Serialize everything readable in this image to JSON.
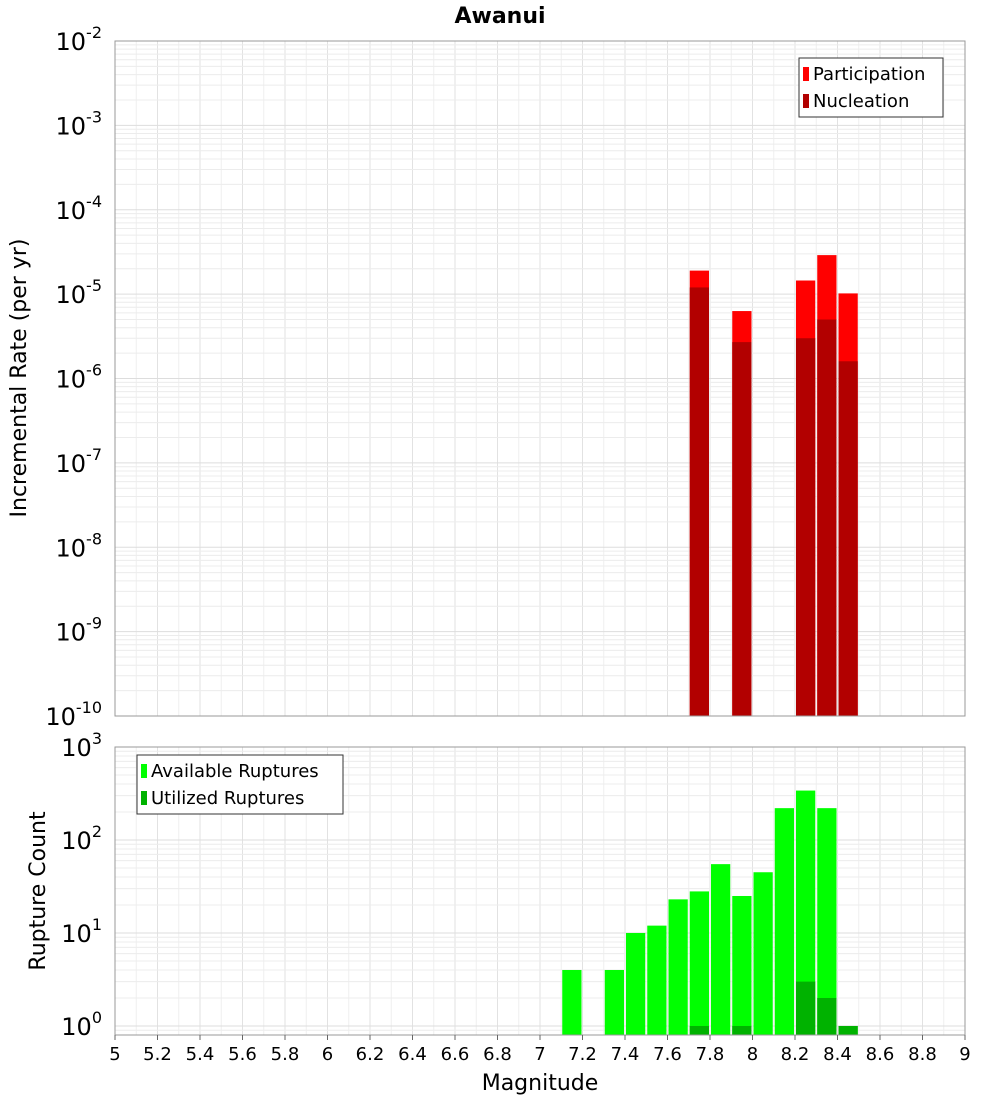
{
  "chart_data": [
    {
      "type": "bar",
      "title": "Awanui",
      "xlabel": "",
      "ylabel": "Incremental Rate (per yr)",
      "yscale": "log",
      "ylim": [
        1e-10,
        0.01
      ],
      "xlim": [
        5,
        9
      ],
      "bar_width": 0.1,
      "y_ticks": [
        {
          "mantissa": "10",
          "exp": "-10"
        },
        {
          "mantissa": "10",
          "exp": "-9"
        },
        {
          "mantissa": "10",
          "exp": "-8"
        },
        {
          "mantissa": "10",
          "exp": "-7"
        },
        {
          "mantissa": "10",
          "exp": "-6"
        },
        {
          "mantissa": "10",
          "exp": "-5"
        },
        {
          "mantissa": "10",
          "exp": "-4"
        },
        {
          "mantissa": "10",
          "exp": "-3"
        },
        {
          "mantissa": "10",
          "exp": "-2"
        }
      ],
      "legend": [
        "Participation",
        "Nucleation"
      ],
      "legend_position": "top-right",
      "series": [
        {
          "name": "Participation",
          "color": "#ff0000",
          "x": [
            7.75,
            7.95,
            8.25,
            8.35,
            8.45
          ],
          "values": [
            1.9e-05,
            6.3e-06,
            1.45e-05,
            2.9e-05,
            1.02e-05
          ]
        },
        {
          "name": "Nucleation",
          "color": "#b20000",
          "x": [
            7.75,
            7.95,
            8.25,
            8.35,
            8.45
          ],
          "values": [
            1.2e-05,
            2.7e-06,
            3e-06,
            5e-06,
            1.6e-06
          ]
        }
      ]
    },
    {
      "type": "bar",
      "title": "",
      "xlabel": "Magnitude",
      "ylabel": "Rupture Count",
      "yscale": "log",
      "ylim": [
        0.8,
        1000
      ],
      "xlim": [
        5,
        9
      ],
      "bar_width": 0.1,
      "y_ticks": [
        {
          "mantissa": "10",
          "exp": "0"
        },
        {
          "mantissa": "10",
          "exp": "1"
        },
        {
          "mantissa": "10",
          "exp": "2"
        },
        {
          "mantissa": "10",
          "exp": "3"
        }
      ],
      "x_ticks": [
        "5",
        "5.2",
        "5.4",
        "5.6",
        "5.8",
        "6",
        "6.2",
        "6.4",
        "6.6",
        "6.8",
        "7",
        "7.2",
        "7.4",
        "7.6",
        "7.8",
        "8",
        "8.2",
        "8.4",
        "8.6",
        "8.8",
        "9"
      ],
      "legend": [
        "Available Ruptures",
        "Utilized Ruptures"
      ],
      "legend_position": "top-left",
      "series": [
        {
          "name": "Available Ruptures",
          "color": "#00ff00",
          "x": [
            7.15,
            7.35,
            7.45,
            7.55,
            7.65,
            7.75,
            7.85,
            7.95,
            8.05,
            8.15,
            8.25,
            8.35,
            8.45
          ],
          "values": [
            4,
            4,
            10,
            12,
            23,
            28,
            55,
            25,
            45,
            220,
            340,
            220,
            1
          ]
        },
        {
          "name": "Utilized Ruptures",
          "color": "#00b200",
          "x": [
            7.75,
            7.95,
            8.25,
            8.35,
            8.45
          ],
          "values": [
            1,
            1,
            3,
            2,
            1
          ]
        }
      ]
    }
  ]
}
